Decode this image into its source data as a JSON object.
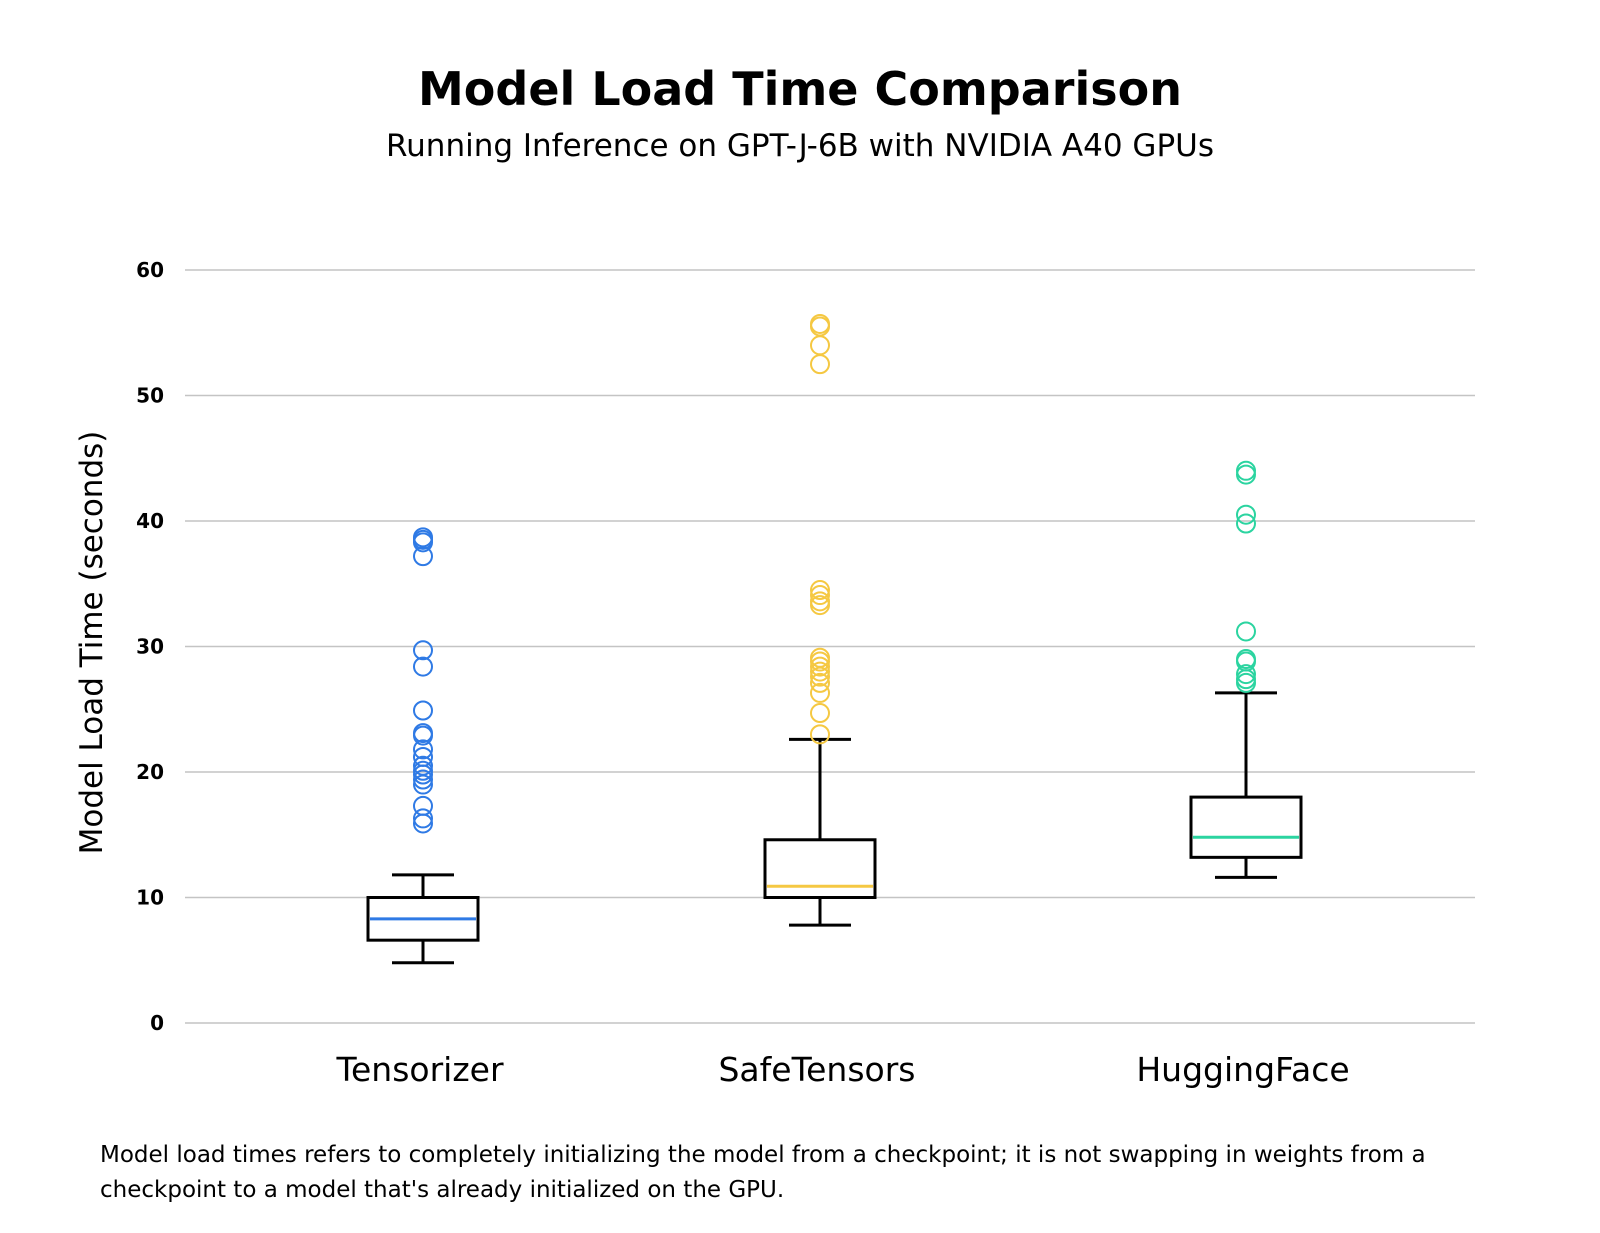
{
  "chart_data": {
    "type": "box",
    "title": "Model Load Time Comparison",
    "subtitle": "Running Inference on GPT-J-6B with NVIDIA A40 GPUs",
    "ylabel": "Model Load Time (seconds)",
    "xlabel": "",
    "yticks": [
      0,
      10,
      20,
      30,
      40,
      50,
      60
    ],
    "ylim": [
      0,
      60
    ],
    "grid": true,
    "categories": [
      "Tensorizer",
      "SafeTensors",
      "HuggingFace"
    ],
    "series": [
      {
        "name": "Tensorizer",
        "color": "#2f7ae5",
        "whisker_low": 4.8,
        "q1": 6.6,
        "median": 8.3,
        "q3": 10.0,
        "whisker_high": 11.8,
        "outliers": [
          15.9,
          16.3,
          17.3,
          19.0,
          19.4,
          19.8,
          20.1,
          20.5,
          21.2,
          21.8,
          22.9,
          23.1,
          24.9,
          28.4,
          29.7,
          37.2,
          38.3,
          38.5,
          38.7
        ]
      },
      {
        "name": "SafeTensors",
        "color": "#f5c842",
        "whisker_low": 7.8,
        "q1": 10.0,
        "median": 10.9,
        "q3": 14.6,
        "whisker_high": 22.6,
        "outliers": [
          23.0,
          24.7,
          26.3,
          27.1,
          27.6,
          28.0,
          28.4,
          28.8,
          29.1,
          33.3,
          33.6,
          34.1,
          34.5,
          52.5,
          54.0,
          55.5,
          55.7
        ]
      },
      {
        "name": "HuggingFace",
        "color": "#2bd4a0",
        "whisker_low": 11.6,
        "q1": 13.2,
        "median": 14.8,
        "q3": 18.0,
        "whisker_high": 26.3,
        "outliers": [
          27.1,
          27.4,
          27.8,
          28.8,
          29.0,
          31.2,
          39.8,
          40.5,
          43.7,
          44.0
        ]
      }
    ]
  },
  "footnote": "Model load times refers to completely initializing the model from a checkpoint; it is not swapping in weights from a checkpoint to a model that's already initialized on the GPU."
}
